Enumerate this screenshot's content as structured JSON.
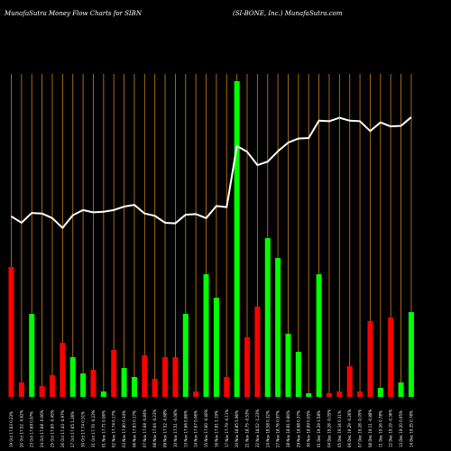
{
  "header": {
    "left_title": "MunafaSutra  Money Flow  Charts for SIBN",
    "right_title": "(SI-BONE,  Inc.) MunafaSutra.com"
  },
  "colors": {
    "background": "#000000",
    "grid_line": "#b8741a",
    "up_bar": "#00ff00",
    "down_bar": "#ff0000",
    "price_line": "#ffffff",
    "text": "#ffffff"
  },
  "chart_data": {
    "type": "bar",
    "title": "MunafaSutra  Money Flow  Charts for SIBN",
    "subtitle": "(SI-BONE,  Inc.) MunafaSutra.com",
    "categories": [
      "19 Oct 17.63 0.23%",
      "20 Oct 17.52 -0.62%",
      "23 Oct 17.69 0.97%",
      "24 Oct 17.68 -0.06%",
      "25 Oct 17.60 -0.45%",
      "26 Oct 17.43 -0.97%",
      "27 Oct 17.65 1.26%",
      "30 Oct 17.74 0.51%",
      "31 Oct 17.70 -0.23%",
      "01 Nov 17.71 0.06%",
      "02 Nov 17.74 0.17%",
      "03 Nov 17.80 0.34%",
      "06 Nov 17.83 0.17%",
      "07 Nov 17.68 -0.84%",
      "08 Nov 17.64 -0.23%",
      "09 Nov 17.52 -0.68%",
      "10 Nov 17.51 -0.06%",
      "13 Nov 17.66 0.86%",
      "14 Nov 17.67 0.06%",
      "15 Nov 17.60 -0.40%",
      "16 Nov 17.81 1.19%",
      "17 Nov 17.79 -0.11%",
      "20 Nov 18.85 5.96%",
      "21 Nov 18.75 -0.53%",
      "22 Nov 18.52 -1.23%",
      "24 Nov 18.58 0.32%",
      "27 Nov 18.76 0.97%",
      "28 Nov 18.91 0.80%",
      "29 Nov 18.98 0.37%",
      "30 Nov 18.99 0.05%",
      "01 Dec 19.29 1.58%",
      "04 Dec 19.28 -0.05%",
      "05 Dec 19.34 0.31%",
      "06 Dec 19.29 -0.26%",
      "07 Dec 19.28 -0.05%",
      "08 Dec 19.11 -0.88%",
      "11 Dec 19.26 0.78%",
      "12 Dec 19.19 -0.36%",
      "13 Dec 19.20 0.05%",
      "14 Dec 19.35 0.78%"
    ],
    "series": [
      {
        "values": [
          36,
          4,
          23,
          3,
          6,
          15,
          11,
          6.5,
          7.5,
          1.5,
          13,
          8,
          5.5,
          11.5,
          5,
          11,
          11,
          23,
          1.5,
          34,
          27.5,
          5.5,
          87.5,
          16.5,
          25,
          44,
          38.5,
          17.5,
          12.5,
          1,
          34,
          1,
          1.5,
          8.5,
          1.5,
          21,
          2.5,
          22,
          4,
          23.5
        ],
        "directions": [
          "down",
          "down",
          "up",
          "down",
          "down",
          "down",
          "up",
          "up",
          "down",
          "up",
          "down",
          "up",
          "up",
          "down",
          "down",
          "down",
          "down",
          "up",
          "down",
          "up",
          "up",
          "down",
          "up",
          "down",
          "down",
          "up",
          "up",
          "up",
          "up",
          "up",
          "up",
          "down",
          "down",
          "down",
          "down",
          "down",
          "up",
          "down",
          "up",
          "up"
        ]
      },
      {
        "values": [
          17.63,
          17.52,
          17.69,
          17.68,
          17.6,
          17.43,
          17.65,
          17.74,
          17.7,
          17.71,
          17.74,
          17.8,
          17.83,
          17.68,
          17.64,
          17.52,
          17.51,
          17.66,
          17.67,
          17.6,
          17.81,
          17.79,
          18.85,
          18.75,
          18.52,
          18.58,
          18.76,
          18.91,
          18.98,
          18.99,
          19.29,
          19.28,
          19.34,
          19.29,
          19.28,
          19.11,
          19.26,
          19.19,
          19.2,
          19.35
        ]
      }
    ],
    "xlabel": "",
    "ylabel": "",
    "bar_ylim": [
      0,
      100
    ],
    "price_ylim": [
      14.5,
      20.1
    ],
    "grid": true
  }
}
